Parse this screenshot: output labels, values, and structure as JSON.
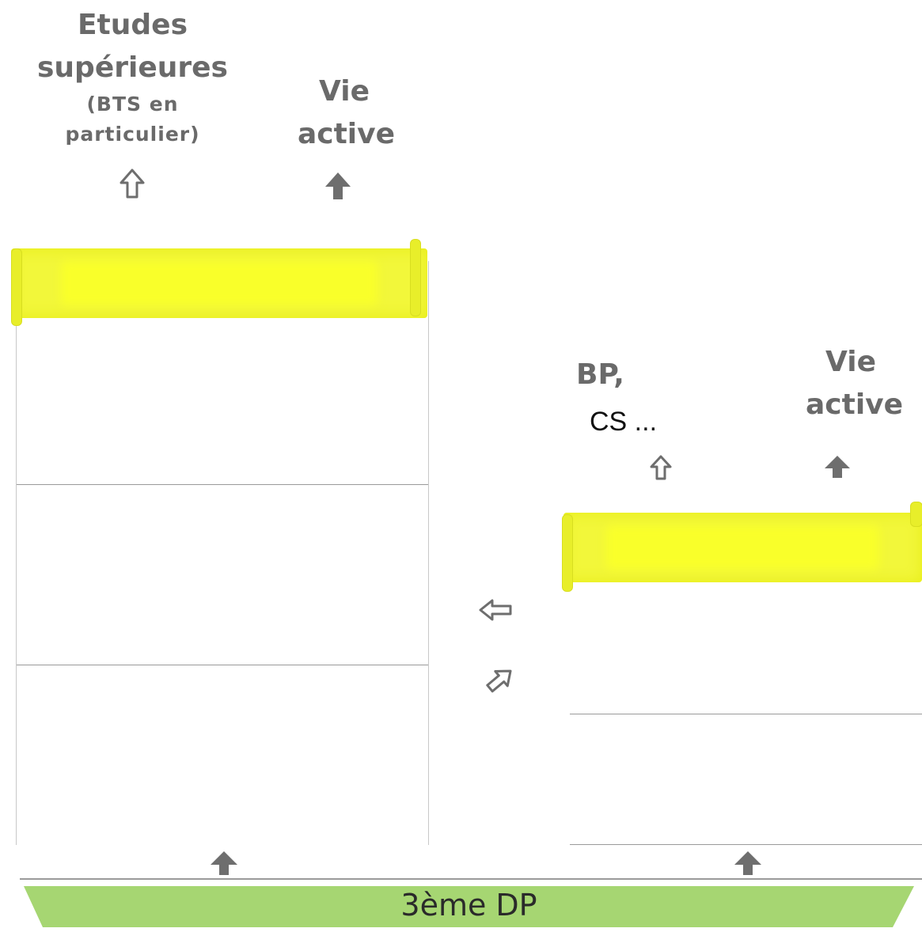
{
  "left_path": {
    "option_1": {
      "title_line1": "Etudes",
      "title_line2": "supérieures",
      "detail_line1": "(BTS en",
      "detail_line2": "particulier)"
    },
    "option_2": {
      "line1": "Vie",
      "line2": "active"
    }
  },
  "right_path": {
    "option_1": {
      "line1": "BP,",
      "line2": "CS ..."
    },
    "option_2": {
      "line1": "Vie",
      "line2": "active"
    }
  },
  "base": {
    "label": "3ème DP"
  },
  "colors": {
    "banner_yellow": "#f2f73a",
    "base_green": "#a6d672",
    "arrow_gray": "#6e6e6e"
  }
}
